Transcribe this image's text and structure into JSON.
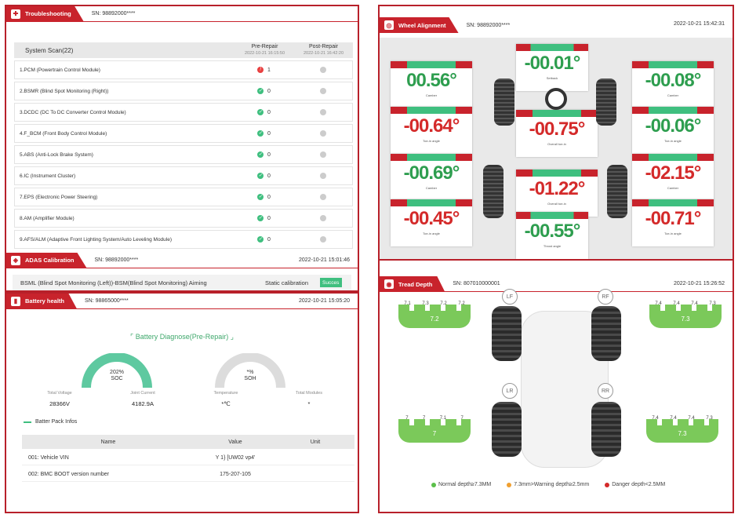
{
  "troubleshooting": {
    "title": "Troubleshooting",
    "sn": "SN: 98892000****",
    "scan_label": "System Scan(22)",
    "pre_label": "Pre-Repair",
    "pre_time": "2022-10-21 16:15:50",
    "post_label": "Post-Repair",
    "post_time": "2022-10-21 16:42:20",
    "rows": [
      {
        "name": "1.PCM (Powertrain Control Module)",
        "pre": "1",
        "status": "err"
      },
      {
        "name": "2.BSMR (Blind Spot Monitoring (Right))",
        "pre": "0",
        "status": "ok"
      },
      {
        "name": "3.DCDC (DC To DC Converter Control Module)",
        "pre": "0",
        "status": "ok"
      },
      {
        "name": "4.F_BCM (Front Body Control Module)",
        "pre": "0",
        "status": "ok"
      },
      {
        "name": "5.ABS (Anti-Lock Brake System)",
        "pre": "0",
        "status": "ok"
      },
      {
        "name": "6.IC (Instrument Cluster)",
        "pre": "0",
        "status": "ok"
      },
      {
        "name": "7.EPS (Electronic Power Steering)",
        "pre": "0",
        "status": "ok"
      },
      {
        "name": "8.AM (Amplifier Module)",
        "pre": "0",
        "status": "ok"
      },
      {
        "name": "9.AFS/ALM (Adaptive Front Lighting System/Auto Leveling Module)",
        "pre": "0",
        "status": "ok"
      }
    ]
  },
  "adas": {
    "title": "ADAS Calibration",
    "sn": "SN: 98892000****",
    "date": "2022-10-21 15:01:46",
    "item": "BSML (Blind Spot Monitoring (Left))-BSM(Blind Spot Monitoring) Aiming",
    "type": "Static calibration",
    "result": "Succes"
  },
  "battery": {
    "title": "Battery health",
    "sn": "SN: 98865000****",
    "date": "2022-10-21 15:05:20",
    "diagnose_title": "Battery Diagnose(Pre-Repair)",
    "soc_value": "202%",
    "soc_label": "SOC",
    "soh_value": "*%",
    "soh_label": "SOH",
    "stats": [
      {
        "key": "Total Voltage",
        "value": "28366V"
      },
      {
        "key": "Joint Current",
        "value": "4182.9A"
      },
      {
        "key": "Temperature",
        "value": "*℃"
      },
      {
        "key": "Total Modules",
        "value": "*"
      }
    ],
    "pack_title": "Batter Pack Infos",
    "col_name": "Name",
    "col_value": "Value",
    "col_unit": "Unit",
    "rows": [
      {
        "name": "001:  Vehicle VIN",
        "value": "Y     1}     [UW02 vp4'",
        "unit": ""
      },
      {
        "name": "002:  BMC BOOT version number",
        "value": "175-207-105",
        "unit": ""
      }
    ]
  },
  "wheel_alignment": {
    "title": "Wheel Alignment",
    "sn": "SN: 98892000****",
    "date": "2022-10-21 15:42:31",
    "cards": [
      {
        "value": "00.56°",
        "color": "g",
        "label": "Camber"
      },
      {
        "value": "-00.01°",
        "color": "g",
        "label": "Setback"
      },
      {
        "value": "-00.08°",
        "color": "g",
        "label": "Camber"
      },
      {
        "value": "-00.64°",
        "color": "r",
        "label": "Toe-in angle"
      },
      {
        "value": "-00.75°",
        "color": "r",
        "label": "Overall toe-in"
      },
      {
        "value": "-00.06°",
        "color": "g",
        "label": "Toe-in angle"
      },
      {
        "value": "-00.69°",
        "color": "g",
        "label": "Camber"
      },
      {
        "value": "-01.22°",
        "color": "r",
        "label": "Overall toe-in"
      },
      {
        "value": "-02.15°",
        "color": "r",
        "label": "Camber"
      },
      {
        "value": "-00.45°",
        "color": "r",
        "label": "Toe-in angle"
      },
      {
        "value": "-00.55°",
        "color": "g",
        "label": "Thrust angle"
      },
      {
        "value": "-00.71°",
        "color": "r",
        "label": "Toe-in angle"
      }
    ]
  },
  "tread_depth": {
    "title": "Tread Depth",
    "sn": "SN: 807010000001",
    "date": "2022-10-21 15:26:52",
    "tires": [
      {
        "corner": "LF",
        "nums": [
          "7.1",
          "7.3",
          "7.2",
          "7.2"
        ],
        "value": "7.2"
      },
      {
        "corner": "RF",
        "nums": [
          "7.4",
          "7.4",
          "7.4",
          "7.3"
        ],
        "value": "7.3"
      },
      {
        "corner": "LR",
        "nums": [
          "7",
          "7",
          "7.1",
          "7"
        ],
        "value": "7"
      },
      {
        "corner": "RR",
        "nums": [
          "7.4",
          "7.4",
          "7.4",
          "7.3"
        ],
        "value": "7.3"
      }
    ],
    "legend": [
      {
        "label": "Normal depth≥7.3MM",
        "color": "#5bbf4a"
      },
      {
        "label": "7.3mm>Warning depth≥2.5mm",
        "color": "#f0a030"
      },
      {
        "label": "Danger depth<2.5MM",
        "color": "#d42a2a"
      }
    ]
  }
}
